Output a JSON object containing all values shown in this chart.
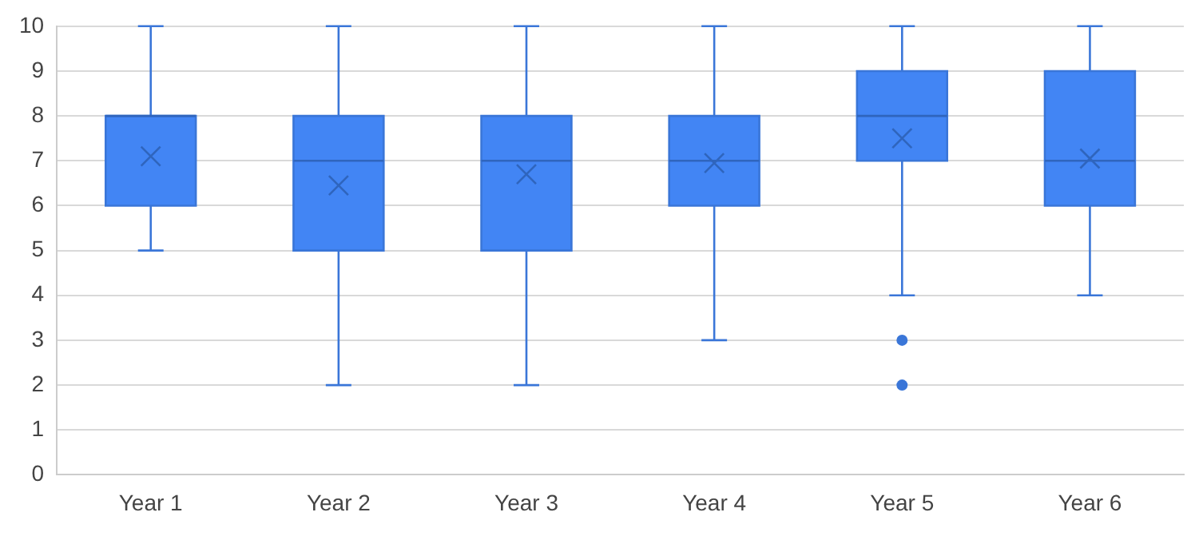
{
  "chart_data": {
    "type": "box",
    "categories": [
      "Year 1",
      "Year 2",
      "Year 3",
      "Year 4",
      "Year 5",
      "Year 6"
    ],
    "color": "#4285f4",
    "boxes": [
      {
        "low": 5,
        "q1": 6,
        "median": 8,
        "q3": 8,
        "high": 10,
        "mean": 7.1
      },
      {
        "low": 2,
        "q1": 5,
        "median": 7,
        "q3": 8,
        "high": 10,
        "mean": 6.45
      },
      {
        "low": 2,
        "q1": 5,
        "median": 7,
        "q3": 8,
        "high": 10,
        "mean": 6.7
      },
      {
        "low": 3,
        "q1": 6,
        "median": 7,
        "q3": 8,
        "high": 10,
        "mean": 6.95
      },
      {
        "low": 4,
        "q1": 7,
        "median": 8,
        "q3": 9,
        "high": 10,
        "mean": 7.5,
        "outliers": [
          3,
          2
        ]
      },
      {
        "low": 4,
        "q1": 6,
        "median": 7,
        "q3": 9,
        "high": 10,
        "mean": 7.05
      }
    ],
    "ylim": [
      0,
      10
    ],
    "yticks": [
      0,
      1,
      2,
      3,
      4,
      5,
      6,
      7,
      8,
      9,
      10
    ],
    "grid": "y",
    "legend": false
  }
}
